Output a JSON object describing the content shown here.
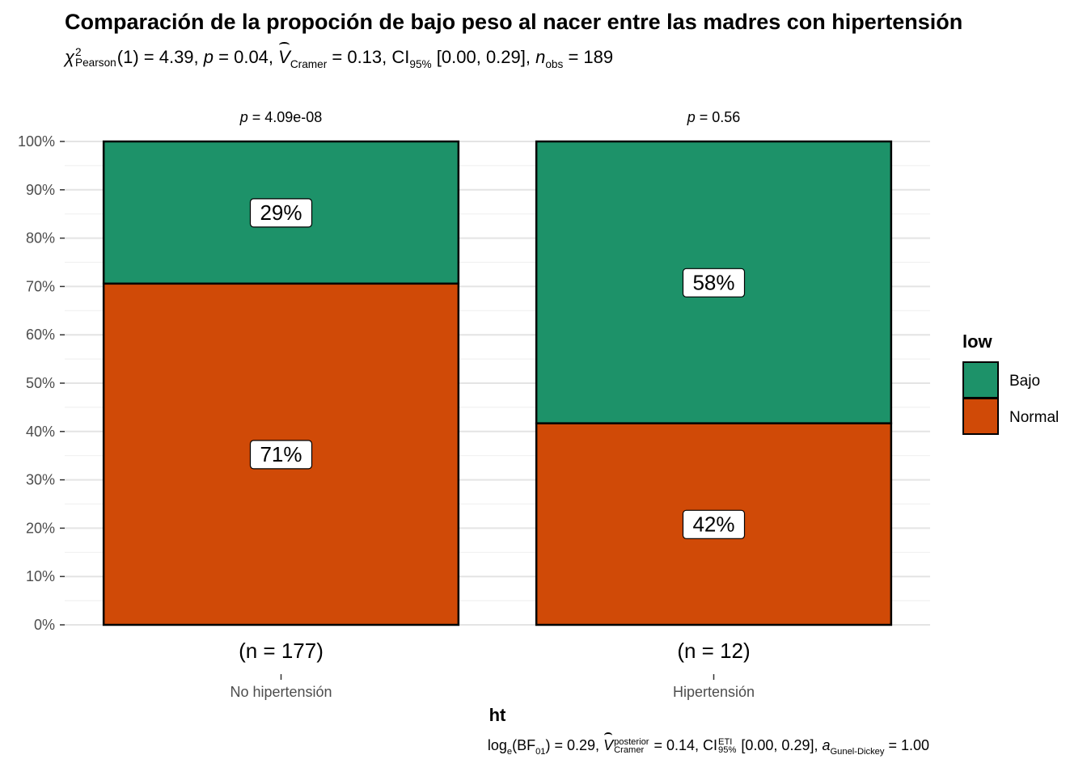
{
  "title": "Comparación de la propoción de bajo peso al nacer entre las madres con hipertensión",
  "subtitle": {
    "chi_symbol": "χ",
    "chi_sup": "2",
    "chi_sub": "Pearson",
    "df": "(1) = 4.39, ",
    "p_label": "p",
    "p_value": " = 0.04, ",
    "v_symbol": "V",
    "v_sub": "Cramer",
    "v_value": " = 0.13, CI",
    "ci_sub": "95%",
    "ci_value": " [0.00, 0.29], ",
    "n_label": "n",
    "n_sub": "obs",
    "n_value": " = 189"
  },
  "caption": {
    "log_text": "log",
    "log_sub": "e",
    "bf_open": "(BF",
    "bf_sub": "01",
    "bf_value": ") = 0.29, ",
    "v_symbol": "V",
    "v_sup": "posterior",
    "v_sub": "Cramer",
    "v_value": " = 0.14, CI",
    "ci_sup": "ETI",
    "ci_sub": "95%",
    "ci_value": " [0.00, 0.29], ",
    "a_label": "a",
    "a_sub": "Gunel-Dickey",
    "a_value": " = 1.00"
  },
  "chart_data": {
    "type": "bar",
    "stacked": true,
    "percent": true,
    "xlabel": "ht",
    "ylabel": "",
    "ylim": [
      0,
      100
    ],
    "y_ticks": [
      "0%",
      "10%",
      "20%",
      "30%",
      "40%",
      "50%",
      "60%",
      "70%",
      "80%",
      "90%",
      "100%"
    ],
    "grid": true,
    "categories": [
      "No hipertensión",
      "Hipertensión"
    ],
    "counts": [
      "(n = 177)",
      "(n = 12)"
    ],
    "facet_p": [
      {
        "label": "p",
        "value": " = 4.09e-08"
      },
      {
        "label": "p",
        "value": " = 0.56"
      }
    ],
    "series": [
      {
        "name": "Normal",
        "color": "#D04A07",
        "values": [
          70.6,
          41.7
        ],
        "labels": [
          "71%",
          "42%"
        ]
      },
      {
        "name": "Bajo",
        "color": "#1D9269",
        "values": [
          29.4,
          58.3
        ],
        "labels": [
          "29%",
          "58%"
        ]
      }
    ],
    "legend": {
      "title": "low",
      "position": "right",
      "entries": [
        {
          "name": "Bajo",
          "color": "#1D9269"
        },
        {
          "name": "Normal",
          "color": "#D04A07"
        }
      ]
    }
  }
}
